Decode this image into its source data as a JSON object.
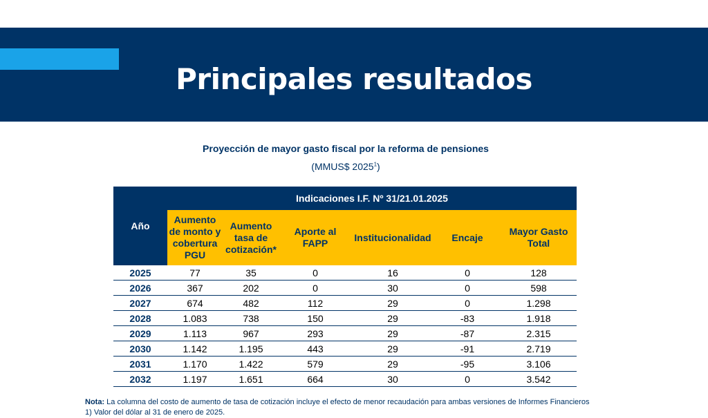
{
  "banner": {
    "title": "Principales resultados"
  },
  "subtitle": "Proyección de mayor gasto fiscal por la reforma de pensiones",
  "units": {
    "text": "(MMUS$ 2025",
    "sup": "1",
    "close": ")"
  },
  "table": {
    "year_header": "Año",
    "group_header": "Indicaciones I.F. Nº 31/21.01.2025",
    "columns": [
      "Aumento de monto y cobertura PGU",
      "Aumento tasa de cotización*",
      "Aporte al FAPP",
      "Institucionalidad",
      "Encaje",
      "Mayor Gasto Total"
    ],
    "rows": [
      {
        "year": "2025",
        "values": [
          "77",
          "35",
          "0",
          "16",
          "0",
          "128"
        ]
      },
      {
        "year": "2026",
        "values": [
          "367",
          "202",
          "0",
          "30",
          "0",
          "598"
        ]
      },
      {
        "year": "2027",
        "values": [
          "674",
          "482",
          "112",
          "29",
          "0",
          "1.298"
        ]
      },
      {
        "year": "2028",
        "values": [
          "1.083",
          "738",
          "150",
          "29",
          "-83",
          "1.918"
        ]
      },
      {
        "year": "2029",
        "values": [
          "1.113",
          "967",
          "293",
          "29",
          "-87",
          "2.315"
        ]
      },
      {
        "year": "2030",
        "values": [
          "1.142",
          "1.195",
          "443",
          "29",
          "-91",
          "2.719"
        ]
      },
      {
        "year": "2031",
        "values": [
          "1.170",
          "1.422",
          "579",
          "29",
          "-95",
          "3.106"
        ]
      },
      {
        "year": "2032",
        "values": [
          "1.197",
          "1.651",
          "664",
          "30",
          "0",
          "3.542"
        ]
      }
    ]
  },
  "notes": {
    "label": "Nota:",
    "text": " La columna del costo de aumento de tasa de cotización incluye el efecto de menor recaudación para ambas versiones de Informes Financieros",
    "footnote": "1) Valor del dólar al 31 de enero de 2025."
  },
  "colors": {
    "navy": "#003366",
    "accent": "#1aa3e8",
    "yellow": "#ffc000"
  }
}
